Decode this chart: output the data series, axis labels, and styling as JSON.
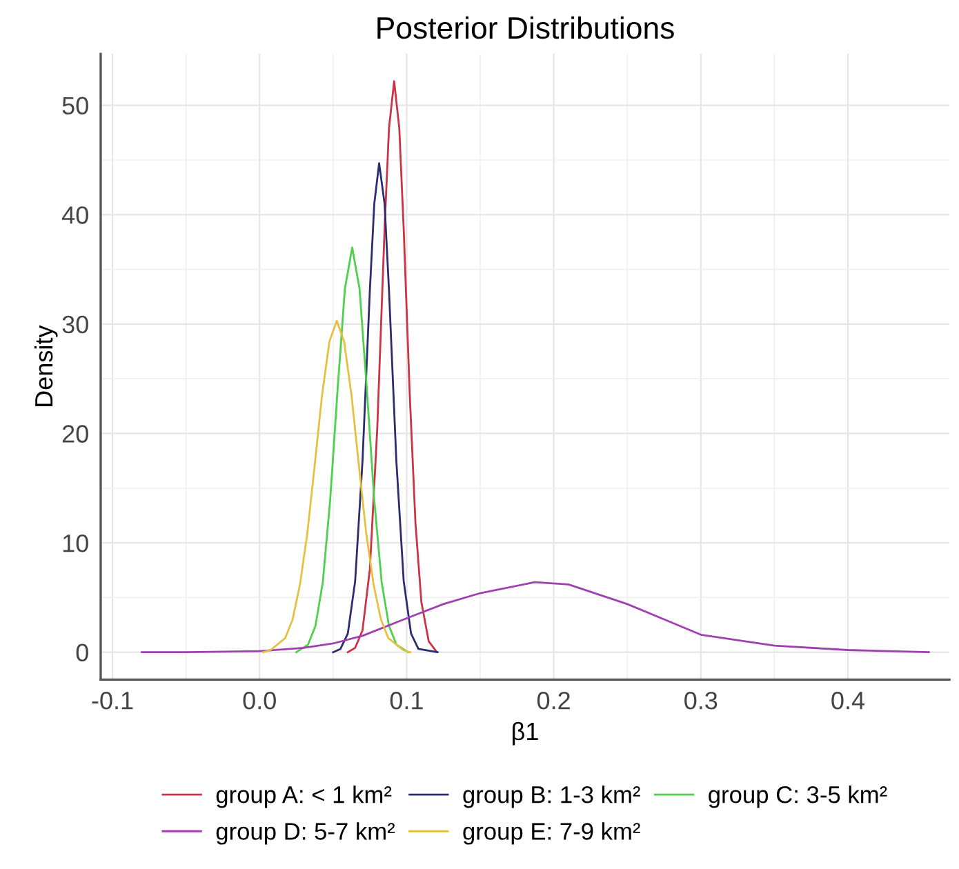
{
  "chart_data": {
    "type": "line",
    "title": "Posterior Distributions",
    "xlabel": "β1",
    "ylabel": "Density",
    "xlim": [
      -0.108,
      0.469
    ],
    "ylim": [
      -2.5,
      54.7
    ],
    "xticks": [
      -0.1,
      {
        "value": 0,
        "label": "0.0"
      },
      0.1,
      0.2,
      0.3,
      0.4
    ],
    "yticks": [
      0,
      10,
      20,
      30,
      40,
      50
    ],
    "grid": true,
    "legend": "bottom",
    "line_style": "solid",
    "marker": "none",
    "series": [
      {
        "name": "group A: < 1 km²",
        "color": "#cc3344",
        "x": [
          0.06,
          0.065,
          0.07,
          0.075,
          0.08,
          0.085,
          0.088,
          0.0915,
          0.095,
          0.098,
          0.102,
          0.106,
          0.11,
          0.115,
          0.12
        ],
        "values": [
          0,
          0.4,
          2.0,
          7.6,
          20.4,
          38.7,
          47.9,
          52.2,
          47.9,
          38.7,
          23.9,
          11.8,
          4.6,
          1.0,
          0.1
        ]
      },
      {
        "name": "group B: 1-3 km²",
        "color": "#2b2d6e",
        "x": [
          0.05,
          0.055,
          0.06,
          0.065,
          0.07,
          0.075,
          0.078,
          0.0813,
          0.085,
          0.088,
          0.093,
          0.098,
          0.103,
          0.108,
          0.121
        ],
        "values": [
          0,
          0.3,
          1.7,
          6.5,
          17.5,
          33.1,
          41.0,
          44.7,
          41.0,
          33.1,
          17.5,
          6.5,
          1.7,
          0.3,
          0
        ]
      },
      {
        "name": "group C: 3-5 km²",
        "color": "#4dd04d",
        "x": [
          0.025,
          0.033,
          0.038,
          0.043,
          0.048,
          0.053,
          0.058,
          0.063,
          0.068,
          0.073,
          0.078,
          0.083,
          0.088,
          0.093,
          0.101
        ],
        "values": [
          0,
          0.7,
          2.4,
          6.4,
          13.9,
          23.9,
          33.2,
          37.0,
          33.2,
          23.9,
          13.9,
          6.4,
          2.4,
          0.7,
          0
        ]
      },
      {
        "name": "group D: 5-7 km²",
        "color": "#a040b0",
        "x": [
          -0.08,
          -0.05,
          0.0,
          0.03,
          0.05,
          0.07,
          0.1,
          0.125,
          0.15,
          0.187,
          0.21,
          0.25,
          0.275,
          0.3,
          0.35,
          0.4,
          0.455
        ],
        "values": [
          0,
          0,
          0.1,
          0.4,
          0.8,
          1.5,
          3.1,
          4.4,
          5.4,
          6.4,
          6.2,
          4.4,
          3.0,
          1.6,
          0.6,
          0.2,
          0
        ]
      },
      {
        "name": "group E: 7-9 km²",
        "color": "#e8c040",
        "x": [
          0.0025,
          0.0075,
          0.0175,
          0.0225,
          0.0275,
          0.0325,
          0.0375,
          0.0425,
          0.0475,
          0.0525,
          0.0575,
          0.0625,
          0.0675,
          0.0725,
          0.0775,
          0.0825,
          0.0875,
          0.0975,
          0.1025
        ],
        "values": [
          0,
          0.2,
          1.3,
          3.0,
          6.2,
          10.9,
          17.1,
          23.5,
          28.4,
          30.3,
          28.4,
          23.5,
          17.1,
          10.9,
          6.2,
          3.0,
          1.3,
          0.2,
          0
        ]
      }
    ]
  }
}
